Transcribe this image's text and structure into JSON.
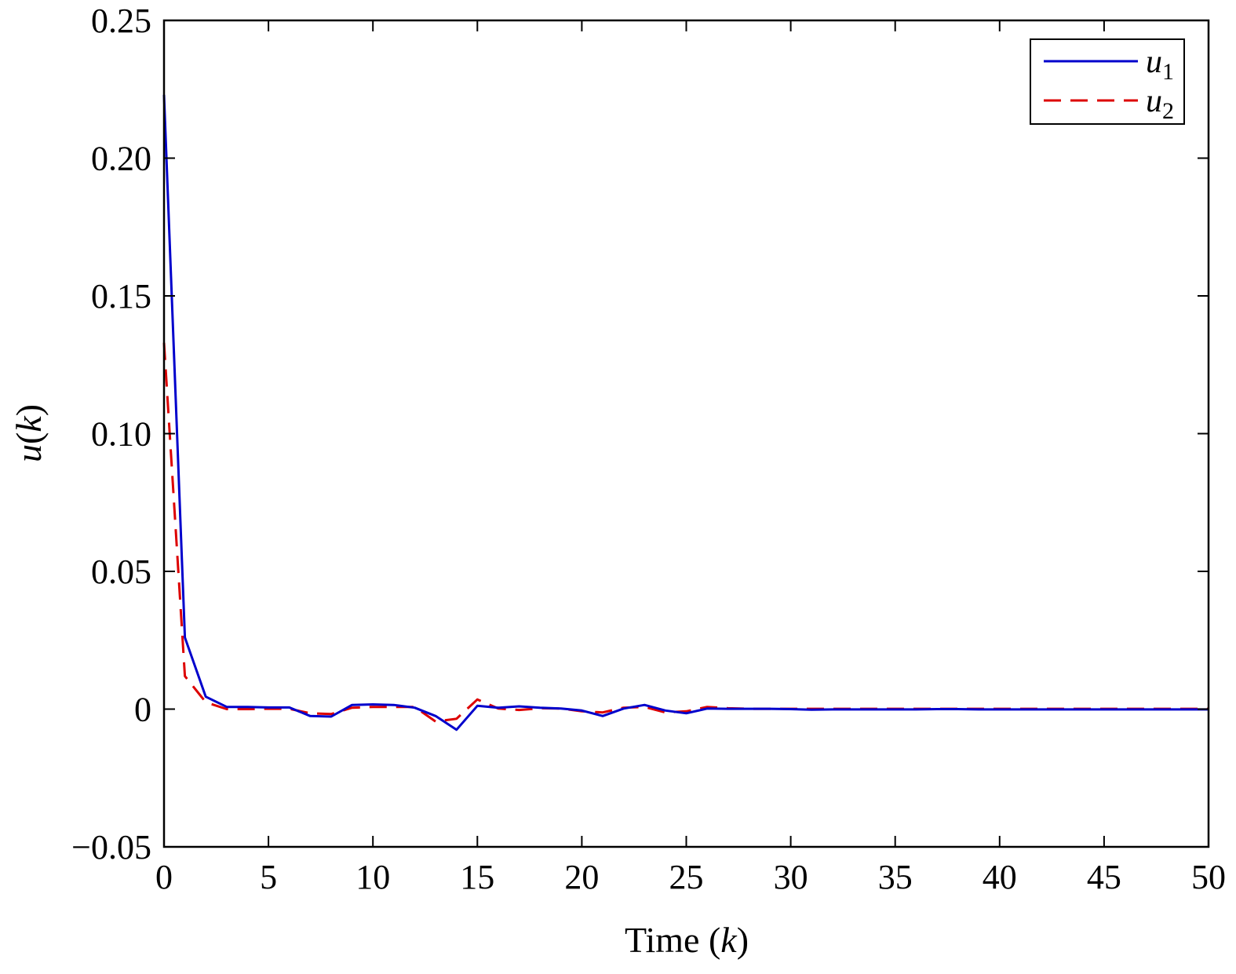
{
  "chart_data": {
    "type": "line",
    "xlabel": "Time (k)",
    "xlabel_parts": {
      "prefix": "Time (",
      "var": "k",
      "suffix": ")"
    },
    "ylabel": "u(k)",
    "ylabel_parts": {
      "var": "u",
      "open": "(",
      "arg": "k",
      "close": ")"
    },
    "xlim": [
      0,
      50
    ],
    "ylim": [
      -0.05,
      0.25
    ],
    "xticks": [
      0,
      5,
      10,
      15,
      20,
      25,
      30,
      35,
      40,
      45,
      50
    ],
    "xtick_labels": [
      "0",
      "5",
      "10",
      "15",
      "20",
      "25",
      "30",
      "35",
      "40",
      "45",
      "50"
    ],
    "yticks": [
      -0.05,
      0,
      0.05,
      0.1,
      0.15,
      0.2,
      0.25
    ],
    "ytick_labels": [
      "−0.05",
      "0",
      "0.05",
      "0.10",
      "0.15",
      "0.20",
      "0.25"
    ],
    "grid": false,
    "legend_position": "top-right",
    "series": [
      {
        "name": "u1",
        "legend_var": "u",
        "legend_sub": "1",
        "color": "#0000cc",
        "dash": "solid",
        "x": [
          0,
          1,
          2,
          3,
          4,
          5,
          6,
          7,
          8,
          9,
          10,
          11,
          12,
          13,
          14,
          15,
          16,
          17,
          18,
          19,
          20,
          21,
          22,
          23,
          24,
          25,
          26,
          27,
          28,
          29,
          30,
          31,
          32,
          33,
          34,
          35,
          36,
          37,
          38,
          39,
          40,
          41,
          42,
          43,
          44,
          45,
          46,
          47,
          48,
          49,
          50
        ],
        "y": [
          0.223,
          0.026,
          0.0045,
          0.0008,
          0.0008,
          0.0006,
          0.0006,
          -0.0025,
          -0.0027,
          0.0015,
          0.0017,
          0.0015,
          0.0005,
          -0.0025,
          -0.0075,
          0.0012,
          0.0005,
          0.001,
          0.0005,
          0.0002,
          -0.0005,
          -0.0025,
          0.0002,
          0.0015,
          -0.0005,
          -0.0015,
          0.0002,
          0.0001,
          0.0001,
          0.0001,
          0.0,
          -0.0002,
          -0.0001,
          -0.0001,
          -0.0001,
          -0.0001,
          -0.0001,
          0.0,
          0.0,
          -0.0001,
          -0.0001,
          -0.0001,
          -0.0001,
          -0.0001,
          -0.0001,
          -0.0001,
          -0.0001,
          -0.0001,
          -0.0001,
          -0.0001,
          -0.0001
        ]
      },
      {
        "name": "u2",
        "legend_var": "u",
        "legend_sub": "2",
        "color": "#dd0000",
        "dash": "dashed",
        "x": [
          0,
          1,
          2,
          3,
          4,
          5,
          6,
          7,
          8,
          9,
          10,
          11,
          12,
          13,
          14,
          15,
          16,
          17,
          18,
          19,
          20,
          21,
          22,
          23,
          24,
          25,
          26,
          27,
          28,
          29,
          30,
          31,
          32,
          33,
          34,
          35,
          36,
          37,
          38,
          39,
          40,
          41,
          42,
          43,
          44,
          45,
          46,
          47,
          48,
          49,
          50
        ],
        "y": [
          0.133,
          0.012,
          0.0025,
          0.0,
          0.0,
          0.0001,
          0.0001,
          -0.0015,
          -0.0018,
          0.0005,
          0.0008,
          0.0008,
          0.0008,
          -0.0045,
          -0.0035,
          0.0035,
          0.0002,
          -0.0003,
          0.0003,
          0.0002,
          -0.0008,
          -0.0012,
          0.0005,
          0.0008,
          -0.0012,
          -0.0008,
          0.0008,
          0.0003,
          0.0001,
          0.0001,
          0.0001,
          0.0001,
          0.0001,
          0.0001,
          0.0001,
          0.0001,
          0.0001,
          0.0001,
          0.0001,
          0.0001,
          0.0001,
          0.0001,
          0.0001,
          0.0001,
          0.0001,
          0.0001,
          0.0001,
          0.0001,
          0.0001,
          0.0001,
          0.0001
        ]
      }
    ]
  }
}
